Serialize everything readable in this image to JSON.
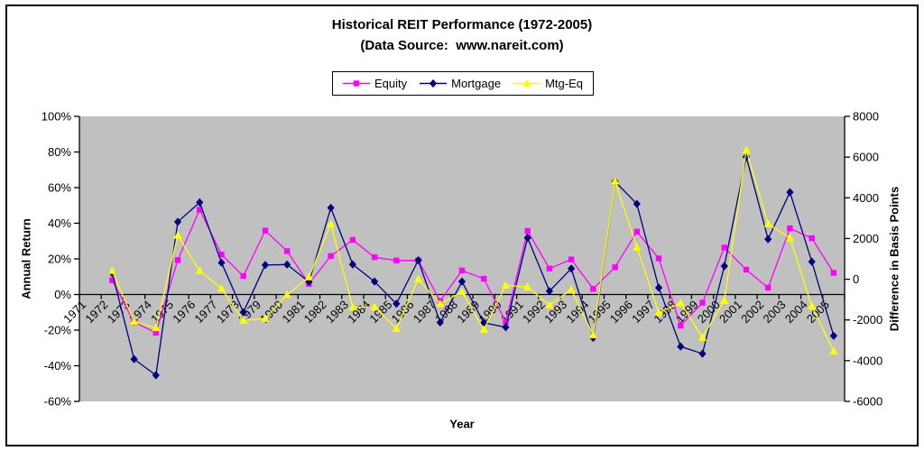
{
  "chart_data": {
    "type": "line",
    "title": "Historical REIT Performance (1972-2005)",
    "subtitle": "(Data Source:  www.nareit.com)",
    "xlabel": "Year",
    "ylabel_left": "Annual Return",
    "ylabel_right": "Difference in Basis Points",
    "legend_position": "top-center",
    "grid": false,
    "plot_bg_color": "#C0C0C0",
    "axis_color": "#000000",
    "x_categories": [
      "1971",
      "1972",
      "1973",
      "1974",
      "1975",
      "1976",
      "1977",
      "1978",
      "1979",
      "1980",
      "1981",
      "1982",
      "1983",
      "1984",
      "1985",
      "1986",
      "1987",
      "1988",
      "1989",
      "1990",
      "1991",
      "1992",
      "1993",
      "1994",
      "1995",
      "1996",
      "1997",
      "1998",
      "1999",
      "2000",
      "2001",
      "2002",
      "2003",
      "2004",
      "2005"
    ],
    "left_axis": {
      "range": [
        -60,
        100
      ],
      "tick_step": 20,
      "tick_labels": [
        "100%",
        "80%",
        "60%",
        "40%",
        "20%",
        "0%",
        "-20%",
        "-40%",
        "-60%"
      ]
    },
    "right_axis": {
      "range": [
        -6000,
        8000
      ],
      "tick_step": 2000,
      "tick_labels": [
        "8000",
        "6000",
        "4000",
        "2000",
        "0",
        "-2000",
        "-4000",
        "-6000"
      ]
    },
    "x": [
      1972,
      1973,
      1974,
      1975,
      1976,
      1977,
      1978,
      1979,
      1980,
      1981,
      1982,
      1983,
      1984,
      1985,
      1986,
      1987,
      1988,
      1989,
      1990,
      1991,
      1992,
      1993,
      1994,
      1995,
      1996,
      1997,
      1998,
      1999,
      2000,
      2001,
      2002,
      2003,
      2004,
      2005
    ],
    "series": [
      {
        "name": "Equity",
        "axis": "left",
        "unit": "percent",
        "color": "#FF00FF",
        "marker": "square",
        "values": [
          8.01,
          -15.52,
          -21.4,
          19.3,
          47.59,
          22.42,
          10.34,
          35.86,
          24.37,
          6.0,
          21.6,
          30.64,
          20.93,
          19.1,
          19.16,
          -3.64,
          13.49,
          8.84,
          -15.35,
          35.7,
          14.59,
          19.65,
          3.17,
          15.27,
          35.27,
          20.26,
          -17.5,
          -4.62,
          26.37,
          13.93,
          3.82,
          37.13,
          31.58,
          12.16
        ]
      },
      {
        "name": "Mortgage",
        "axis": "left",
        "unit": "percent",
        "color": "#000080",
        "marker": "diamond",
        "values": [
          12.17,
          -36.26,
          -45.32,
          40.79,
          51.71,
          17.82,
          -9.97,
          16.56,
          16.8,
          7.07,
          48.64,
          16.9,
          7.26,
          -5.2,
          19.21,
          -15.67,
          7.3,
          -15.9,
          -18.37,
          31.83,
          1.92,
          14.55,
          -24.3,
          63.42,
          50.86,
          3.82,
          -29.22,
          -33.22,
          15.96,
          77.35,
          31.08,
          57.39,
          18.43,
          -23.19
        ]
      },
      {
        "name": "Mtg-Eq",
        "axis": "right",
        "unit": "basis_points",
        "color": "#FFFF00",
        "marker": "triangle",
        "values": [
          416,
          -2074,
          -2392,
          2149,
          412,
          -460,
          -2031,
          -1930,
          -757,
          107,
          2704,
          -1374,
          -1367,
          -2430,
          5,
          -1203,
          -619,
          -2474,
          -302,
          -387,
          -1267,
          -510,
          -2747,
          4815,
          1559,
          -1644,
          -1172,
          -2860,
          -1041,
          6342,
          2726,
          2026,
          -1315,
          -3535
        ]
      }
    ]
  }
}
